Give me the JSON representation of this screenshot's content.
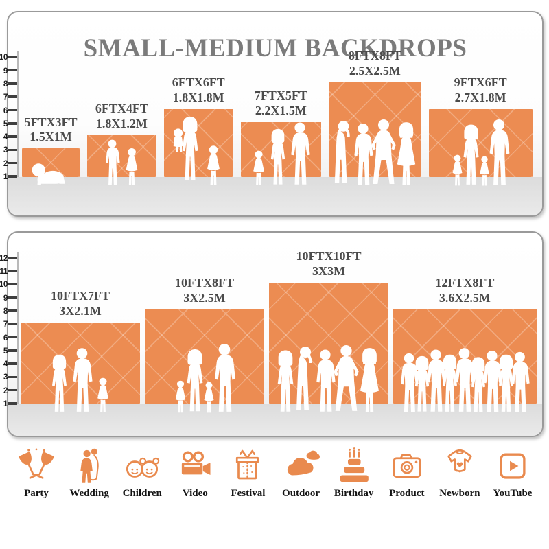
{
  "title": "SMALL-MEDIUM BACKDROPS",
  "accent_color": "#EC8C52",
  "panels": [
    {
      "name": "small-medium-top",
      "ruler_max": 10,
      "backdrops": [
        {
          "size_ft": "5FTX3FT",
          "size_m": "1.5X1M",
          "w_ft": 5,
          "h_ft": 3,
          "figures": [
            {
              "icon": "baby-crawling",
              "h": 40
            }
          ]
        },
        {
          "size_ft": "6FTX4FT",
          "size_m": "1.8X1.2M",
          "w_ft": 6,
          "h_ft": 4,
          "figures": [
            {
              "icon": "boy",
              "h": 70
            },
            {
              "icon": "girl",
              "h": 58
            }
          ]
        },
        {
          "size_ft": "6FTX6FT",
          "size_m": "1.8X1.8M",
          "w_ft": 6,
          "h_ft": 6,
          "figures": [
            {
              "icon": "woman-carrying-child",
              "h": 104
            },
            {
              "icon": "girl",
              "h": 62
            }
          ]
        },
        {
          "size_ft": "7FTX5FT",
          "size_m": "2.2X1.5M",
          "w_ft": 7,
          "h_ft": 5,
          "figures": [
            {
              "icon": "girl",
              "h": 54
            },
            {
              "icon": "woman",
              "h": 86
            },
            {
              "icon": "man",
              "h": 96
            }
          ]
        },
        {
          "size_ft": "8FTX8FT",
          "size_m": "2.5X2.5M",
          "w_ft": 8,
          "h_ft": 8,
          "figures": [
            {
              "icon": "man-arms-up",
              "h": 98
            },
            {
              "icon": "man",
              "h": 94
            },
            {
              "icon": "man-hands-on-hips",
              "h": 100
            },
            {
              "icon": "woman-arms-up",
              "h": 96
            }
          ]
        },
        {
          "size_ft": "9FTX6FT",
          "size_m": "2.7X1.8M",
          "w_ft": 9,
          "h_ft": 6,
          "figures": [
            {
              "icon": "girl",
              "h": 48
            },
            {
              "icon": "woman",
              "h": 92
            },
            {
              "icon": "girl",
              "h": 46
            },
            {
              "icon": "man",
              "h": 100
            }
          ]
        }
      ]
    },
    {
      "name": "small-medium-bottom",
      "ruler_max": 12,
      "backdrops": [
        {
          "size_ft": "10FTX7FT",
          "size_m": "3X2.1M",
          "w_ft": 10,
          "h_ft": 7,
          "figures": [
            {
              "icon": "woman",
              "h": 88
            },
            {
              "icon": "man",
              "h": 98
            },
            {
              "icon": "girl",
              "h": 54
            }
          ]
        },
        {
          "size_ft": "10FTX8FT",
          "size_m": "3X2.5M",
          "w_ft": 10,
          "h_ft": 8,
          "figures": [
            {
              "icon": "girl",
              "h": 50
            },
            {
              "icon": "woman",
              "h": 96
            },
            {
              "icon": "girl",
              "h": 48
            },
            {
              "icon": "man",
              "h": 104
            }
          ]
        },
        {
          "size_ft": "10FTX10FT",
          "size_m": "3X3M",
          "w_ft": 10,
          "h_ft": 10,
          "figures": [
            {
              "icon": "woman",
              "h": 94
            },
            {
              "icon": "man-arms-up",
              "h": 100
            },
            {
              "icon": "man",
              "h": 96
            },
            {
              "icon": "man-hands-on-hips",
              "h": 102
            },
            {
              "icon": "woman-arms-up",
              "h": 98
            }
          ]
        },
        {
          "size_ft": "12FTX8FT",
          "size_m": "3.6X2.5M",
          "w_ft": 12,
          "h_ft": 8,
          "figures": [
            {
              "icon": "man",
              "h": 90
            },
            {
              "icon": "woman",
              "h": 86
            },
            {
              "icon": "man",
              "h": 96
            },
            {
              "icon": "woman",
              "h": 88
            },
            {
              "icon": "man",
              "h": 98
            },
            {
              "icon": "woman",
              "h": 84
            },
            {
              "icon": "man",
              "h": 94
            },
            {
              "icon": "woman",
              "h": 88
            },
            {
              "icon": "man",
              "h": 92
            }
          ]
        }
      ]
    }
  ],
  "categories": [
    {
      "label": "Party",
      "icon": "party-icon"
    },
    {
      "label": "Wedding",
      "icon": "wedding-icon"
    },
    {
      "label": "Children",
      "icon": "children-icon"
    },
    {
      "label": "Video",
      "icon": "video-icon"
    },
    {
      "label": "Festival",
      "icon": "festival-icon"
    },
    {
      "label": "Outdoor",
      "icon": "outdoor-icon"
    },
    {
      "label": "Birthday",
      "icon": "birthday-icon"
    },
    {
      "label": "Product",
      "icon": "product-icon"
    },
    {
      "label": "Newborn",
      "icon": "newborn-icon"
    },
    {
      "label": "YouTube",
      "icon": "youtube-icon"
    }
  ]
}
